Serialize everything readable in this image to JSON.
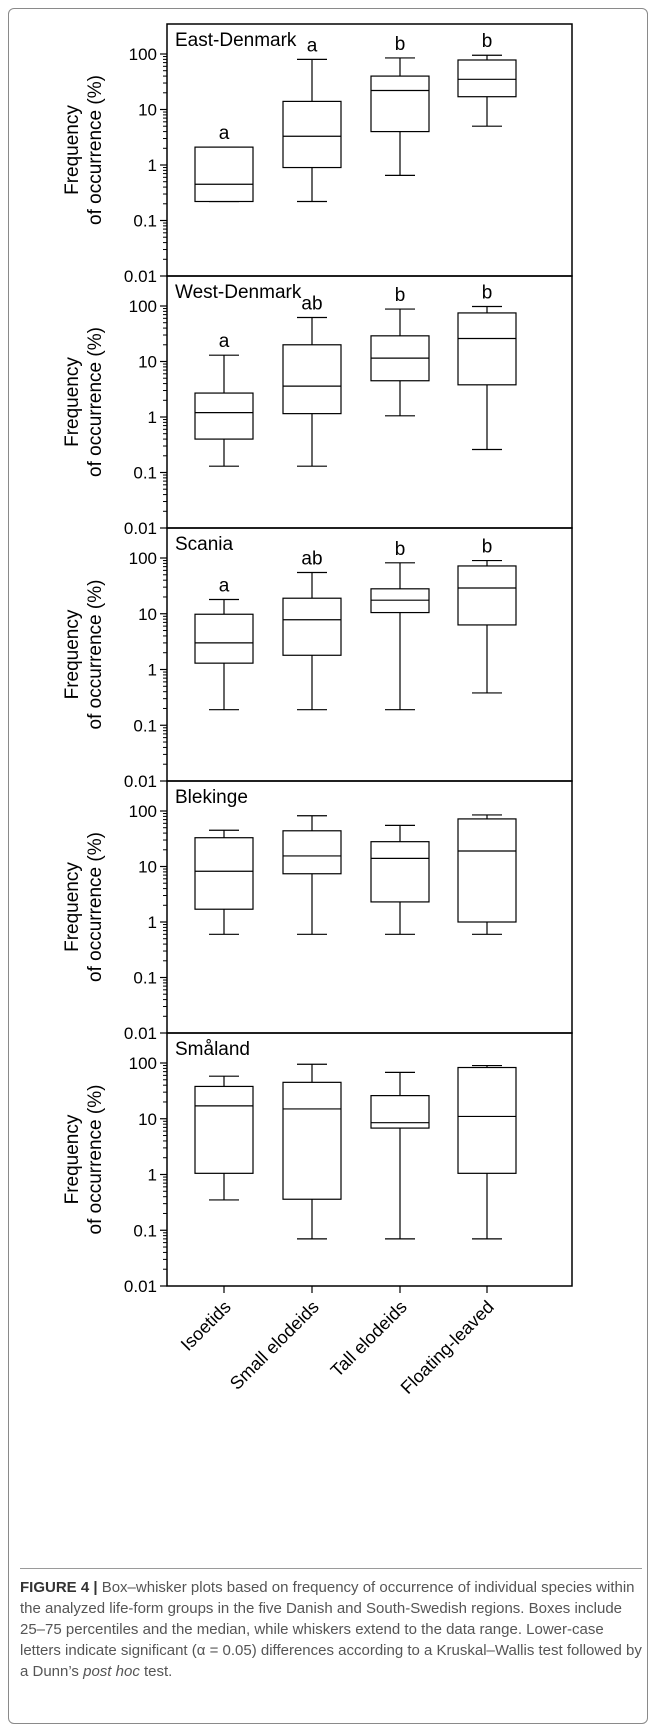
{
  "chart_data": [
    {
      "type": "box",
      "title": "East-Denmark",
      "ylabel": "Frequency of occurrence (%)",
      "ylabel_lines": [
        "Frequency",
        "of occurrence (%)"
      ],
      "yscale": "log",
      "ylim": [
        0.01,
        100
      ],
      "yticks": [
        "100",
        "10",
        "1",
        "0.1",
        "0.01"
      ],
      "categories": [
        "Isoetids",
        "Small elodeids",
        "Tall elodeids",
        "Floating-leaved"
      ],
      "boxes": [
        {
          "min": 0.22,
          "q1": 0.22,
          "median": 0.45,
          "q3": 2.1,
          "max": 2.1
        },
        {
          "min": 0.22,
          "q1": 0.9,
          "median": 3.3,
          "q3": 14,
          "max": 80
        },
        {
          "min": 0.65,
          "q1": 4,
          "median": 22,
          "q3": 40,
          "max": 85
        },
        {
          "min": 5,
          "q1": 17,
          "median": 35,
          "q3": 78,
          "max": 95
        }
      ],
      "letters": [
        "a",
        "a",
        "b",
        "b"
      ]
    },
    {
      "type": "box",
      "title": "West-Denmark",
      "ylabel": "Frequency of occurrence (%)",
      "ylabel_lines": [
        "Frequency",
        "of occurrence (%)"
      ],
      "yscale": "log",
      "ylim": [
        0.01,
        100
      ],
      "yticks": [
        "100",
        "10",
        "1",
        "0.1",
        "0.01"
      ],
      "categories": [
        "Isoetids",
        "Small elodeids",
        "Tall elodeids",
        "Floating-leaved"
      ],
      "boxes": [
        {
          "min": 0.13,
          "q1": 0.4,
          "median": 1.2,
          "q3": 2.7,
          "max": 13
        },
        {
          "min": 0.13,
          "q1": 1.15,
          "median": 3.6,
          "q3": 20,
          "max": 62
        },
        {
          "min": 1.05,
          "q1": 4.5,
          "median": 11.5,
          "q3": 29,
          "max": 88
        },
        {
          "min": 0.26,
          "q1": 3.8,
          "median": 26,
          "q3": 75,
          "max": 98
        }
      ],
      "letters": [
        "a",
        "ab",
        "b",
        "b"
      ]
    },
    {
      "type": "box",
      "title": "Scania",
      "ylabel": "Frequency of occurrence (%)",
      "ylabel_lines": [
        "Frequency",
        "of occurrence (%)"
      ],
      "yscale": "log",
      "ylim": [
        0.01,
        100
      ],
      "yticks": [
        "100",
        "10",
        "1",
        "0.1",
        "0.01"
      ],
      "categories": [
        "Isoetids",
        "Small elodeids",
        "Tall elodeids",
        "Floating-leaved"
      ],
      "boxes": [
        {
          "min": 0.19,
          "q1": 1.3,
          "median": 3,
          "q3": 9.8,
          "max": 18
        },
        {
          "min": 0.19,
          "q1": 1.8,
          "median": 7.8,
          "q3": 19,
          "max": 55
        },
        {
          "min": 0.19,
          "q1": 10.5,
          "median": 17.5,
          "q3": 28,
          "max": 82
        },
        {
          "min": 0.38,
          "q1": 6.3,
          "median": 29,
          "q3": 72,
          "max": 90
        }
      ],
      "letters": [
        "a",
        "ab",
        "b",
        "b"
      ]
    },
    {
      "type": "box",
      "title": "Blekinge",
      "ylabel": "Frequency of occurrence (%)",
      "ylabel_lines": [
        "Frequency",
        "of occurrence (%)"
      ],
      "yscale": "log",
      "ylim": [
        0.01,
        100
      ],
      "yticks": [
        "100",
        "10",
        "1",
        "0.1",
        "0.01"
      ],
      "categories": [
        "Isoetids",
        "Small elodeids",
        "Tall elodeids",
        "Floating-leaved"
      ],
      "boxes": [
        {
          "min": 0.6,
          "q1": 1.7,
          "median": 8.2,
          "q3": 33,
          "max": 45
        },
        {
          "min": 0.6,
          "q1": 7.4,
          "median": 15.5,
          "q3": 44,
          "max": 82
        },
        {
          "min": 0.6,
          "q1": 2.3,
          "median": 14,
          "q3": 28,
          "max": 55
        },
        {
          "min": 0.6,
          "q1": 1,
          "median": 19,
          "q3": 72,
          "max": 85
        }
      ],
      "letters": [
        "",
        "",
        "",
        ""
      ]
    },
    {
      "type": "box",
      "title": "Småland",
      "ylabel": "Frequency of occurrence (%)",
      "ylabel_lines": [
        "Frequency",
        "of occurrence (%)"
      ],
      "yscale": "log",
      "ylim": [
        0.01,
        100
      ],
      "yticks": [
        "100",
        "10",
        "1",
        "0.1",
        "0.01"
      ],
      "categories": [
        "Isoetids",
        "Small elodeids",
        "Tall elodeids",
        "Floating-leaved"
      ],
      "boxes": [
        {
          "min": 0.35,
          "q1": 1.05,
          "median": 17,
          "q3": 38,
          "max": 58
        },
        {
          "min": 0.07,
          "q1": 0.36,
          "median": 15,
          "q3": 45,
          "max": 95
        },
        {
          "min": 0.07,
          "q1": 6.8,
          "median": 8.5,
          "q3": 26,
          "max": 68
        },
        {
          "min": 0.07,
          "q1": 1.05,
          "median": 11,
          "q3": 83,
          "max": 90
        }
      ],
      "letters": [
        "",
        "",
        "",
        ""
      ]
    }
  ],
  "caption": {
    "figure_label": "FIGURE 4 |",
    "text_before_italic": " Box–whisker plots based on frequency of occurrence of individual species within the analyzed life-form groups in the five Danish and South-Swedish regions. Boxes include 25–75 percentiles and the median, while whiskers extend to the data range. Lower-case letters indicate significant (α = 0.05) differences according to a Kruskal–Wallis test followed by a Dunn’s ",
    "italic": "post hoc",
    "text_after_italic": " test."
  }
}
